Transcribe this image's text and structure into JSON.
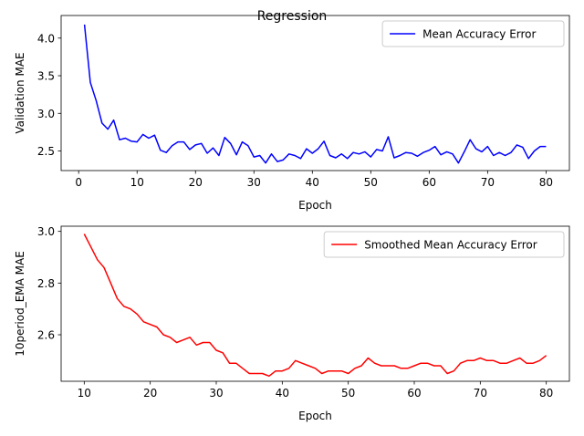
{
  "figure": {
    "title": "Regression"
  },
  "chart_data": [
    {
      "type": "line",
      "xlabel": "Epoch",
      "ylabel": "Validation MAE",
      "xlim": [
        -3.0,
        84.0
      ],
      "ylim": [
        2.24,
        4.3
      ],
      "xticks": [
        0,
        10,
        20,
        30,
        40,
        50,
        60,
        70,
        80
      ],
      "yticks": [
        2.5,
        3.0,
        3.5,
        4.0
      ],
      "ytick_labels": [
        "2.5",
        "3.0",
        "3.5",
        "4.0"
      ],
      "grid": false,
      "legend_position": "upper right",
      "series": [
        {
          "name": "Mean Accuracy Error",
          "color": "#0000ff",
          "x": [
            1,
            2,
            3,
            4,
            5,
            6,
            7,
            8,
            9,
            10,
            11,
            12,
            13,
            14,
            15,
            16,
            17,
            18,
            19,
            20,
            21,
            22,
            23,
            24,
            25,
            26,
            27,
            28,
            29,
            30,
            31,
            32,
            33,
            34,
            35,
            36,
            37,
            38,
            39,
            40,
            41,
            42,
            43,
            44,
            45,
            46,
            47,
            48,
            49,
            50,
            51,
            52,
            53,
            54,
            55,
            56,
            57,
            58,
            59,
            60,
            61,
            62,
            63,
            64,
            65,
            66,
            67,
            68,
            69,
            70,
            71,
            72,
            73,
            74,
            75,
            76,
            77,
            78,
            79,
            80
          ],
          "y": [
            4.18,
            3.41,
            3.17,
            2.87,
            2.79,
            2.91,
            2.65,
            2.67,
            2.63,
            2.62,
            2.72,
            2.67,
            2.71,
            2.51,
            2.48,
            2.57,
            2.62,
            2.62,
            2.52,
            2.58,
            2.6,
            2.47,
            2.54,
            2.44,
            2.68,
            2.6,
            2.45,
            2.62,
            2.57,
            2.42,
            2.44,
            2.34,
            2.46,
            2.36,
            2.38,
            2.46,
            2.44,
            2.4,
            2.53,
            2.47,
            2.53,
            2.63,
            2.44,
            2.41,
            2.46,
            2.4,
            2.48,
            2.46,
            2.49,
            2.42,
            2.52,
            2.5,
            2.69,
            2.41,
            2.44,
            2.48,
            2.47,
            2.43,
            2.48,
            2.51,
            2.56,
            2.45,
            2.49,
            2.46,
            2.34,
            2.49,
            2.65,
            2.53,
            2.49,
            2.56,
            2.44,
            2.48,
            2.44,
            2.48,
            2.58,
            2.55,
            2.4,
            2.5,
            2.56,
            2.56
          ]
        }
      ]
    },
    {
      "type": "line",
      "xlabel": "Epoch",
      "ylabel": "10period_EMA MAE",
      "xlim": [
        6.5,
        83.5
      ],
      "ylim": [
        2.42,
        3.02
      ],
      "xticks": [
        10,
        20,
        30,
        40,
        50,
        60,
        70,
        80
      ],
      "yticks": [
        2.6,
        2.8,
        3.0
      ],
      "ytick_labels": [
        "2.6",
        "2.8",
        "3.0"
      ],
      "grid": false,
      "legend_position": "upper right",
      "series": [
        {
          "name": "Smoothed Mean Accuracy Error",
          "color": "#ff0000",
          "x": [
            10,
            11,
            12,
            13,
            14,
            15,
            16,
            17,
            18,
            19,
            20,
            21,
            22,
            23,
            24,
            25,
            26,
            27,
            28,
            29,
            30,
            31,
            32,
            33,
            34,
            35,
            36,
            37,
            38,
            39,
            40,
            41,
            42,
            43,
            44,
            45,
            46,
            47,
            48,
            49,
            50,
            51,
            52,
            53,
            54,
            55,
            56,
            57,
            58,
            59,
            60,
            61,
            62,
            63,
            64,
            65,
            66,
            67,
            68,
            69,
            70,
            71,
            72,
            73,
            74,
            75,
            76,
            77,
            78,
            79,
            80
          ],
          "y": [
            2.99,
            2.94,
            2.89,
            2.86,
            2.8,
            2.74,
            2.71,
            2.7,
            2.68,
            2.65,
            2.64,
            2.63,
            2.6,
            2.59,
            2.57,
            2.58,
            2.59,
            2.56,
            2.57,
            2.57,
            2.54,
            2.53,
            2.49,
            2.49,
            2.47,
            2.45,
            2.45,
            2.45,
            2.44,
            2.46,
            2.46,
            2.47,
            2.5,
            2.49,
            2.48,
            2.47,
            2.45,
            2.46,
            2.46,
            2.46,
            2.45,
            2.47,
            2.48,
            2.51,
            2.49,
            2.48,
            2.48,
            2.48,
            2.47,
            2.47,
            2.48,
            2.49,
            2.49,
            2.48,
            2.48,
            2.45,
            2.46,
            2.49,
            2.5,
            2.5,
            2.51,
            2.5,
            2.5,
            2.49,
            2.49,
            2.5,
            2.51,
            2.49,
            2.49,
            2.5,
            2.52
          ]
        }
      ]
    }
  ]
}
